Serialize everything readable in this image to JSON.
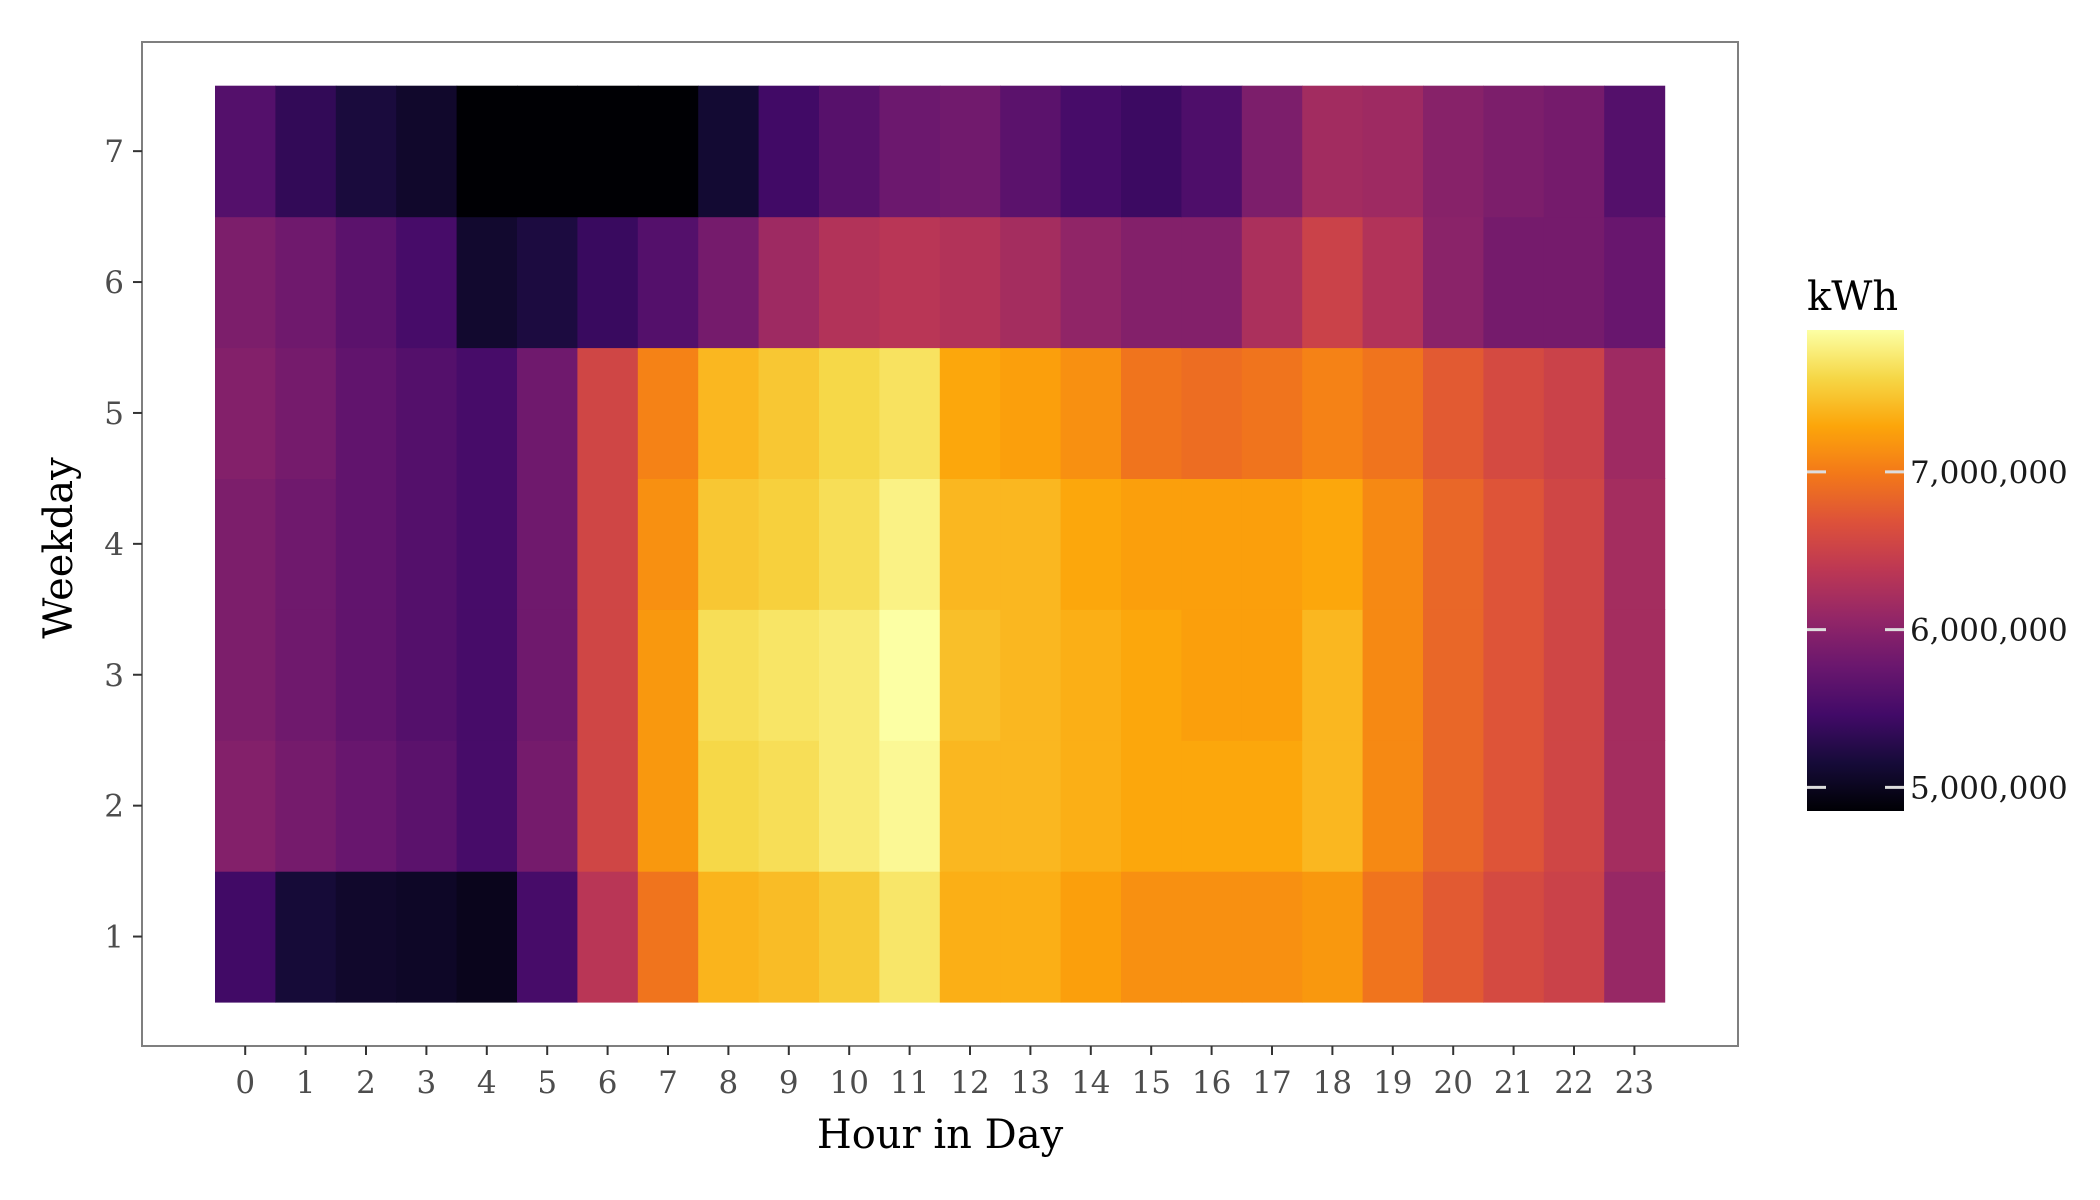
{
  "chart_data": {
    "type": "heatmap",
    "xlabel": "Hour in Day",
    "ylabel": "Weekday",
    "x": [
      "0",
      "1",
      "2",
      "3",
      "4",
      "5",
      "6",
      "7",
      "8",
      "9",
      "10",
      "11",
      "12",
      "13",
      "14",
      "15",
      "16",
      "17",
      "18",
      "19",
      "20",
      "21",
      "22",
      "23"
    ],
    "y": [
      "1",
      "2",
      "3",
      "4",
      "5",
      "6",
      "7"
    ],
    "values": [
      [
        5450000,
        5150000,
        5080000,
        5050000,
        4990000,
        5500000,
        6350000,
        6950000,
        7380000,
        7430000,
        7520000,
        7710000,
        7350000,
        7350000,
        7250000,
        7150000,
        7150000,
        7150000,
        7200000,
        6950000,
        6750000,
        6600000,
        6500000,
        6100000
      ],
      [
        5950000,
        5850000,
        5750000,
        5650000,
        5500000,
        5850000,
        6550000,
        7200000,
        7600000,
        7650000,
        7750000,
        7850000,
        7400000,
        7400000,
        7350000,
        7300000,
        7300000,
        7300000,
        7400000,
        7100000,
        6850000,
        6700000,
        6550000,
        6200000
      ],
      [
        5900000,
        5800000,
        5700000,
        5600000,
        5500000,
        5800000,
        6550000,
        7200000,
        7650000,
        7700000,
        7750000,
        7900000,
        7450000,
        7400000,
        7350000,
        7300000,
        7250000,
        7250000,
        7400000,
        7100000,
        6850000,
        6700000,
        6550000,
        6200000
      ],
      [
        5900000,
        5800000,
        5700000,
        5600000,
        5500000,
        5800000,
        6550000,
        7150000,
        7500000,
        7550000,
        7650000,
        7800000,
        7400000,
        7400000,
        7300000,
        7250000,
        7250000,
        7250000,
        7300000,
        7100000,
        6850000,
        6700000,
        6550000,
        6200000
      ],
      [
        5950000,
        5850000,
        5700000,
        5600000,
        5500000,
        5800000,
        6550000,
        7050000,
        7400000,
        7500000,
        7600000,
        7680000,
        7300000,
        7250000,
        7150000,
        6950000,
        6900000,
        6950000,
        7050000,
        6950000,
        6750000,
        6600000,
        6500000,
        6150000
      ],
      [
        5900000,
        5800000,
        5650000,
        5500000,
        5100000,
        5200000,
        5400000,
        5600000,
        5850000,
        6150000,
        6300000,
        6350000,
        6300000,
        6200000,
        6050000,
        5950000,
        5950000,
        6250000,
        6500000,
        6300000,
        6000000,
        5850000,
        5850000,
        5750000
      ],
      [
        5600000,
        5350000,
        5180000,
        5080000,
        4850000,
        4850000,
        4850000,
        4850000,
        5120000,
        5450000,
        5620000,
        5780000,
        5820000,
        5650000,
        5500000,
        5420000,
        5550000,
        5900000,
        6180000,
        6150000,
        5980000,
        5900000,
        5850000,
        5600000
      ]
    ],
    "value_range": [
      4850000,
      7900000
    ],
    "colormap": "inferno",
    "legend": {
      "title": "kWh",
      "placement": "right",
      "ticks": [
        5000000,
        6000000,
        7000000
      ],
      "tick_labels": [
        "5,000,000",
        "6,000,000",
        "7,000,000"
      ]
    },
    "grid": false,
    "panel_border_color": "#7f7f7f",
    "background_color": "#ffffff"
  }
}
